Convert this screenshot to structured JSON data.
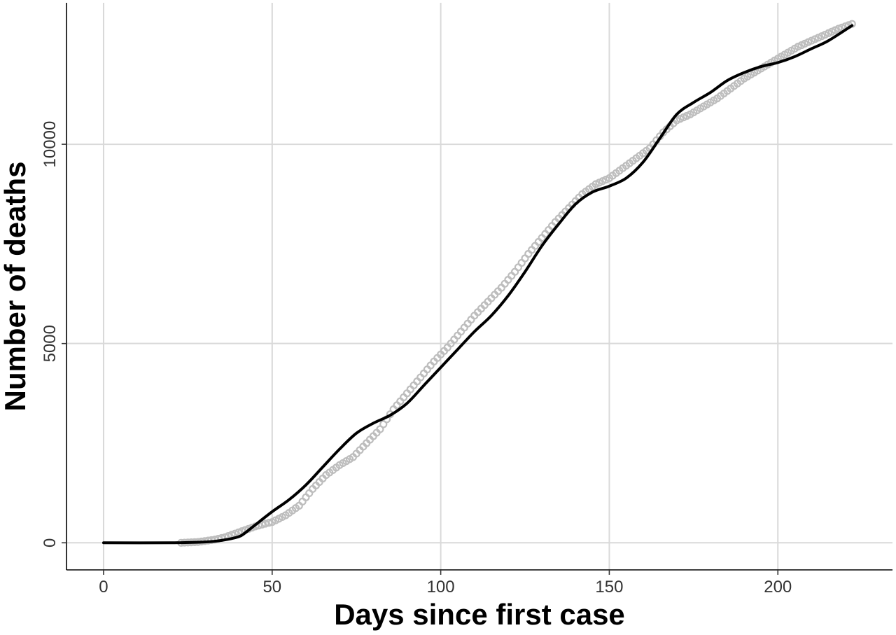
{
  "chart_data": {
    "type": "scatter",
    "title": "",
    "xlabel": "Days since first case",
    "ylabel": "Number of deaths",
    "xlim": [
      -11,
      234
    ],
    "ylim": [
      -680,
      13550
    ],
    "x_ticks": [
      0,
      50,
      100,
      150,
      200
    ],
    "y_ticks": [
      0,
      5000,
      10000
    ],
    "x_tick_labels": [
      "0",
      "50",
      "100",
      "150",
      "200"
    ],
    "y_tick_labels": [
      "0",
      "5000",
      "10000"
    ],
    "grid": true,
    "colors": {
      "points": "#bdbdbd",
      "line": "#000000",
      "grid": "#d9d9d9",
      "axis": "#000000"
    },
    "series": [
      {
        "kind": "points",
        "x": [
          23,
          28,
          33,
          36,
          39,
          42,
          45,
          48,
          50,
          54,
          58,
          62,
          66,
          70,
          74,
          78,
          82,
          86,
          90,
          94,
          98,
          102,
          106,
          110,
          114,
          118,
          122,
          126,
          130,
          134,
          138,
          142,
          146,
          150,
          154,
          158,
          162,
          166,
          170,
          174,
          178,
          182,
          186,
          190,
          194,
          198,
          202,
          206,
          210,
          214,
          218,
          222
        ],
        "y": [
          0,
          20,
          80,
          140,
          230,
          320,
          410,
          480,
          520,
          690,
          930,
          1350,
          1700,
          1950,
          2150,
          2500,
          2850,
          3350,
          3750,
          4150,
          4550,
          4900,
          5300,
          5700,
          6050,
          6400,
          6800,
          7250,
          7650,
          8050,
          8400,
          8750,
          9000,
          9150,
          9400,
          9650,
          9900,
          10300,
          10600,
          10750,
          10950,
          11150,
          11400,
          11650,
          11850,
          12050,
          12250,
          12450,
          12600,
          12750,
          12900,
          13020
        ]
      },
      {
        "kind": "smooth",
        "x": [
          0,
          20,
          30,
          35,
          40,
          42,
          45,
          50,
          55,
          60,
          65,
          70,
          75,
          80,
          85,
          90,
          95,
          100,
          105,
          110,
          115,
          120,
          125,
          130,
          135,
          140,
          145,
          150,
          155,
          160,
          165,
          170,
          175,
          180,
          185,
          190,
          195,
          200,
          205,
          210,
          215,
          222
        ],
        "y": [
          0,
          0,
          20,
          60,
          150,
          250,
          450,
          780,
          1080,
          1450,
          1900,
          2350,
          2750,
          3000,
          3200,
          3500,
          3950,
          4400,
          4850,
          5300,
          5700,
          6200,
          6800,
          7450,
          8000,
          8500,
          8800,
          8950,
          9150,
          9550,
          10150,
          10750,
          11050,
          11300,
          11600,
          11800,
          11950,
          12050,
          12200,
          12400,
          12600,
          12980
        ]
      }
    ]
  }
}
